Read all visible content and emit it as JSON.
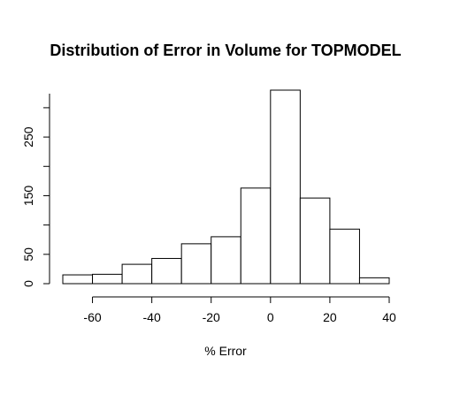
{
  "chart_data": {
    "type": "bar",
    "title": "Distribution of Error in Volume for TOPMODEL",
    "xlabel": "% Error",
    "ylabel": "",
    "bin_edges": [
      -70,
      -60,
      -50,
      -40,
      -30,
      -20,
      -10,
      0,
      10,
      20,
      30,
      40
    ],
    "values": [
      15,
      16,
      33,
      43,
      68,
      80,
      163,
      330,
      146,
      93,
      10
    ],
    "xlim": [
      -70,
      40
    ],
    "ylim": [
      0,
      330
    ],
    "x_ticks": [
      -60,
      -40,
      -20,
      0,
      20,
      40
    ],
    "x_tick_labels": [
      "-60",
      "-40",
      "-20",
      "0",
      "20",
      "40"
    ],
    "y_ticks": [
      0,
      50,
      150,
      250
    ],
    "y_tick_labels": [
      "0",
      "50",
      "150",
      "250"
    ],
    "grid": false
  }
}
